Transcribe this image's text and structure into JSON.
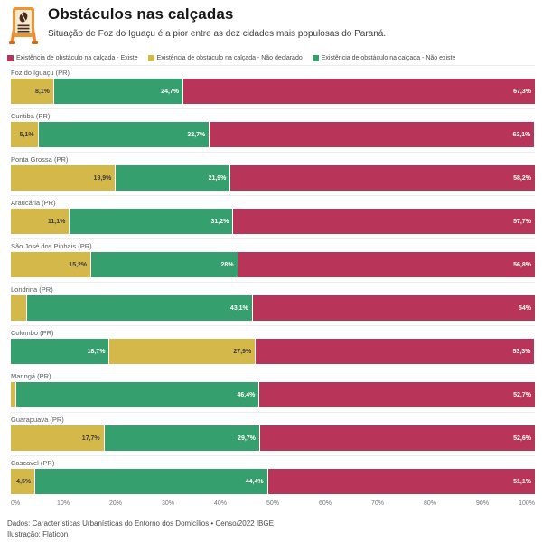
{
  "header": {
    "title": "Obstáculos nas calçadas",
    "subtitle": "Situação de Foz do Iguaçu é a pior entre as dez cidades mais populosas do Paraná.",
    "icon": "easel-sign-icon"
  },
  "footer": {
    "line1": "Dados: Características Urbanísticas do Entorno dos Domicílios • Censo/2022 IBGE",
    "line2": "Ilustração: Flaticon"
  },
  "colors": {
    "existe_red": "#b83458",
    "nao_declarado_yellow": "#d4b94a",
    "nao_existe_green": "#35a06d",
    "brand_orange": "#ef9431"
  },
  "chart_data": {
    "type": "bar",
    "orientation": "horizontal",
    "stacked": true,
    "value_unit": "%",
    "xlim": [
      0,
      100
    ],
    "x_ticks": [
      "0%",
      "10%",
      "20%",
      "30%",
      "40%",
      "50%",
      "60%",
      "70%",
      "80%",
      "90%",
      "100%"
    ],
    "legend_position": "top-left",
    "legend": [
      {
        "key": "existe",
        "name": "Existência de obstáculo na calçada - Existe",
        "color": "#b83458",
        "value_text_color": "#ffffff"
      },
      {
        "key": "nao_declarado",
        "name": "Existência de obstáculo na calçada - Não declarado",
        "color": "#d4b94a",
        "value_text_color": "#3d3d3d"
      },
      {
        "key": "nao_existe",
        "name": "Existência de obstáculo na calçada - Não existe",
        "color": "#35a06d",
        "value_text_color": "#ffffff"
      }
    ],
    "rows": [
      {
        "category": "Foz do Iguaçu (PR)",
        "segments": [
          {
            "key": "nao_declarado",
            "value": 8.1,
            "label": "8,1%"
          },
          {
            "key": "nao_existe",
            "value": 24.7,
            "label": "24,7%"
          },
          {
            "key": "existe",
            "value": 67.3,
            "label": "67,3%"
          }
        ]
      },
      {
        "category": "Curitiba (PR)",
        "segments": [
          {
            "key": "nao_declarado",
            "value": 5.1,
            "label": "5,1%"
          },
          {
            "key": "nao_existe",
            "value": 32.7,
            "label": "32,7%"
          },
          {
            "key": "existe",
            "value": 62.1,
            "label": "62,1%"
          }
        ]
      },
      {
        "category": "Ponta Grossa (PR)",
        "segments": [
          {
            "key": "nao_declarado",
            "value": 19.9,
            "label": "19,9%"
          },
          {
            "key": "nao_existe",
            "value": 21.9,
            "label": "21,9%"
          },
          {
            "key": "existe",
            "value": 58.2,
            "label": "58,2%"
          }
        ]
      },
      {
        "category": "Araucária (PR)",
        "segments": [
          {
            "key": "nao_declarado",
            "value": 11.1,
            "label": "11,1%"
          },
          {
            "key": "nao_existe",
            "value": 31.2,
            "label": "31,2%"
          },
          {
            "key": "existe",
            "value": 57.7,
            "label": "57,7%"
          }
        ]
      },
      {
        "category": "São José dos Pinhais (PR)",
        "segments": [
          {
            "key": "nao_declarado",
            "value": 15.2,
            "label": "15,2%"
          },
          {
            "key": "nao_existe",
            "value": 28,
            "label": "28%"
          },
          {
            "key": "existe",
            "value": 56.8,
            "label": "56,8%"
          }
        ]
      },
      {
        "category": "Londrina (PR)",
        "segments": [
          {
            "key": "nao_declarado",
            "value": 2.9,
            "label": ""
          },
          {
            "key": "nao_existe",
            "value": 43.1,
            "label": "43,1%"
          },
          {
            "key": "existe",
            "value": 54,
            "label": "54%"
          }
        ]
      },
      {
        "category": "Colombo (PR)",
        "segments": [
          {
            "key": "nao_existe",
            "value": 18.7,
            "label": "18,7%"
          },
          {
            "key": "nao_declarado",
            "value": 27.9,
            "label": "27,9%"
          },
          {
            "key": "existe",
            "value": 53.3,
            "label": "53,3%"
          }
        ]
      },
      {
        "category": "Maringá (PR)",
        "segments": [
          {
            "key": "nao_declarado",
            "value": 0.9,
            "label": ""
          },
          {
            "key": "nao_existe",
            "value": 46.4,
            "label": "46,4%"
          },
          {
            "key": "existe",
            "value": 52.7,
            "label": "52,7%"
          }
        ]
      },
      {
        "category": "Guarapuava (PR)",
        "segments": [
          {
            "key": "nao_declarado",
            "value": 17.7,
            "label": "17,7%"
          },
          {
            "key": "nao_existe",
            "value": 29.7,
            "label": "29,7%"
          },
          {
            "key": "existe",
            "value": 52.6,
            "label": "52,6%"
          }
        ]
      },
      {
        "category": "Cascavel (PR)",
        "segments": [
          {
            "key": "nao_declarado",
            "value": 4.5,
            "label": "4,5%"
          },
          {
            "key": "nao_existe",
            "value": 44.4,
            "label": "44,4%"
          },
          {
            "key": "existe",
            "value": 51.1,
            "label": "51,1%"
          }
        ]
      }
    ]
  }
}
